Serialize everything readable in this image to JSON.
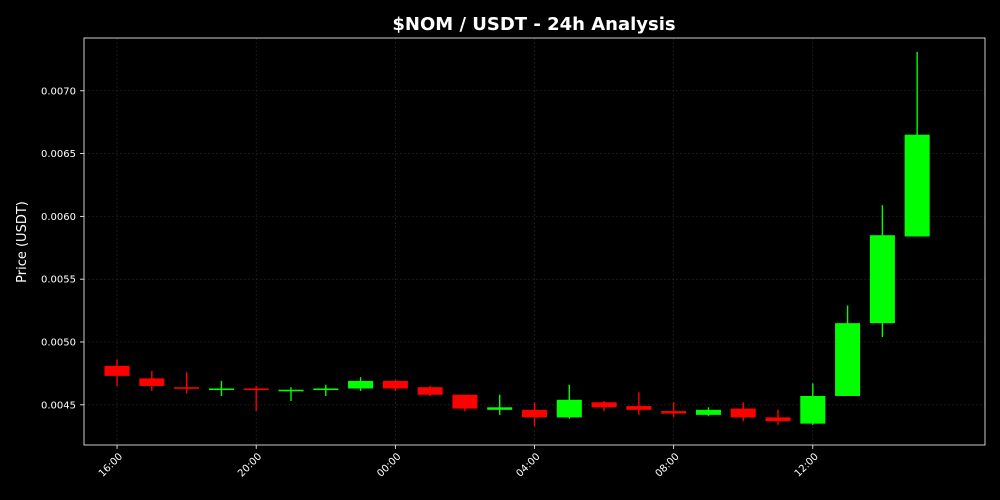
{
  "chart_data": {
    "type": "candlestick",
    "title": "$NOM / USDT - 24h Analysis",
    "xlabel": "",
    "ylabel": "Price (USDT)",
    "x_range_hours": [
      -0.95,
      24.95
    ],
    "ylim": [
      0.00418,
      0.00742
    ],
    "yticks": [
      0.0045,
      0.005,
      0.0055,
      0.006,
      0.0065,
      0.007
    ],
    "ytick_labels": [
      "0.0045",
      "0.0050",
      "0.0055",
      "0.0060",
      "0.0065",
      "0.0070"
    ],
    "xticks": [
      0,
      4,
      8,
      12,
      16,
      20
    ],
    "xtick_labels": [
      "16:00",
      "20:00",
      "00:00",
      "04:00",
      "08:00",
      "12:00"
    ],
    "grid": true,
    "up_color": "#00ff00",
    "down_color": "#ff0000",
    "candles": [
      {
        "time": "16:00",
        "open": 0.00481,
        "high": 0.00486,
        "low": 0.00465,
        "close": 0.00473
      },
      {
        "time": "17:00",
        "open": 0.00471,
        "high": 0.00477,
        "low": 0.00461,
        "close": 0.00465
      },
      {
        "time": "18:00",
        "open": 0.00464,
        "high": 0.00476,
        "low": 0.00459,
        "close": 0.00463
      },
      {
        "time": "19:00",
        "open": 0.00462,
        "high": 0.00469,
        "low": 0.00457,
        "close": 0.00463
      },
      {
        "time": "20:00",
        "open": 0.00463,
        "high": 0.00465,
        "low": 0.00445,
        "close": 0.00462
      },
      {
        "time": "21:00",
        "open": 0.00461,
        "high": 0.00464,
        "low": 0.00453,
        "close": 0.00462
      },
      {
        "time": "22:00",
        "open": 0.00462,
        "high": 0.00466,
        "low": 0.00457,
        "close": 0.00463
      },
      {
        "time": "23:00",
        "open": 0.00463,
        "high": 0.00472,
        "low": 0.00461,
        "close": 0.00469
      },
      {
        "time": "00:00",
        "open": 0.00469,
        "high": 0.0047,
        "low": 0.00461,
        "close": 0.00463
      },
      {
        "time": "01:00",
        "open": 0.00464,
        "high": 0.00465,
        "low": 0.00457,
        "close": 0.00458
      },
      {
        "time": "02:00",
        "open": 0.00458,
        "high": 0.00458,
        "low": 0.00445,
        "close": 0.00447
      },
      {
        "time": "03:00",
        "open": 0.00446,
        "high": 0.00458,
        "low": 0.00442,
        "close": 0.00448
      },
      {
        "time": "04:00",
        "open": 0.00446,
        "high": 0.00452,
        "low": 0.00433,
        "close": 0.0044
      },
      {
        "time": "05:00",
        "open": 0.0044,
        "high": 0.00466,
        "low": 0.00439,
        "close": 0.00454
      },
      {
        "time": "06:00",
        "open": 0.00452,
        "high": 0.00453,
        "low": 0.00445,
        "close": 0.00448
      },
      {
        "time": "07:00",
        "open": 0.00449,
        "high": 0.0046,
        "low": 0.00442,
        "close": 0.00446
      },
      {
        "time": "08:00",
        "open": 0.00445,
        "high": 0.00452,
        "low": 0.0044,
        "close": 0.00443
      },
      {
        "time": "09:00",
        "open": 0.00442,
        "high": 0.00448,
        "low": 0.00441,
        "close": 0.00446
      },
      {
        "time": "10:00",
        "open": 0.00447,
        "high": 0.00452,
        "low": 0.00437,
        "close": 0.0044
      },
      {
        "time": "11:00",
        "open": 0.0044,
        "high": 0.00446,
        "low": 0.00434,
        "close": 0.00437
      },
      {
        "time": "12:00",
        "open": 0.00435,
        "high": 0.00467,
        "low": 0.00434,
        "close": 0.00457
      },
      {
        "time": "13:00",
        "open": 0.00457,
        "high": 0.00529,
        "low": 0.00457,
        "close": 0.00515
      },
      {
        "time": "14:00",
        "open": 0.00515,
        "high": 0.00609,
        "low": 0.00504,
        "close": 0.00585
      },
      {
        "time": "15:00",
        "open": 0.00584,
        "high": 0.00731,
        "low": 0.00584,
        "close": 0.00665
      }
    ]
  }
}
